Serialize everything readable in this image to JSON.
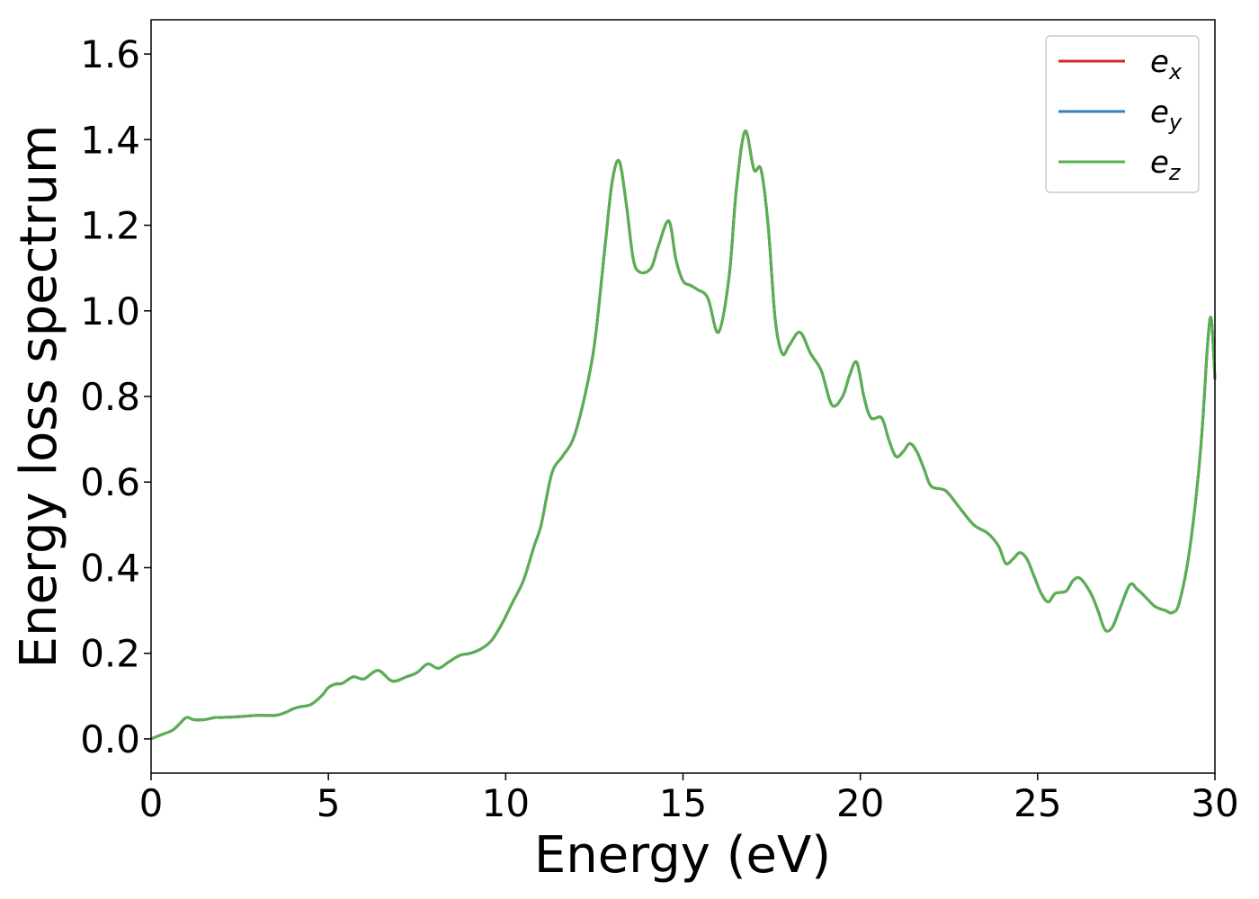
{
  "chart_data": {
    "type": "line",
    "title": "",
    "xlabel": "Energy (eV)",
    "ylabel": "Energy loss spectrum",
    "xlim": [
      0,
      30
    ],
    "ylim": [
      -0.08,
      1.68
    ],
    "xticks": [
      0,
      5,
      10,
      15,
      20,
      25,
      30
    ],
    "yticks": [
      0.0,
      0.2,
      0.4,
      0.6,
      0.8,
      1.0,
      1.2,
      1.4,
      1.6
    ],
    "grid": false,
    "legend_position": "top-right",
    "series": [
      {
        "name": "e_x",
        "name_base": "e",
        "name_sub": "x",
        "color": "#d62728"
      },
      {
        "name": "e_y",
        "name_base": "e",
        "name_sub": "y",
        "color": "#3a7fb5"
      },
      {
        "name": "e_z",
        "name_base": "e",
        "name_sub": "z",
        "color": "#59b04f"
      }
    ],
    "x": [
      0,
      0.3,
      0.6,
      0.8,
      1.0,
      1.2,
      1.5,
      1.8,
      2.0,
      2.5,
      3.0,
      3.5,
      3.8,
      4.0,
      4.2,
      4.5,
      4.8,
      5.0,
      5.2,
      5.4,
      5.7,
      6.0,
      6.4,
      6.8,
      7.2,
      7.5,
      7.8,
      8.1,
      8.4,
      8.7,
      9.0,
      9.3,
      9.6,
      9.9,
      10.2,
      10.5,
      10.8,
      11.0,
      11.3,
      11.6,
      11.9,
      12.2,
      12.5,
      12.8,
      13.0,
      13.2,
      13.4,
      13.6,
      13.8,
      14.1,
      14.3,
      14.6,
      14.8,
      15.0,
      15.2,
      15.4,
      15.7,
      16.0,
      16.3,
      16.5,
      16.75,
      17.0,
      17.2,
      17.4,
      17.6,
      17.8,
      18.0,
      18.3,
      18.6,
      18.9,
      19.2,
      19.5,
      19.7,
      19.9,
      20.1,
      20.3,
      20.6,
      20.8,
      21.0,
      21.2,
      21.4,
      21.6,
      21.8,
      22.0,
      22.4,
      22.8,
      23.2,
      23.6,
      23.9,
      24.1,
      24.3,
      24.5,
      24.7,
      24.9,
      25.1,
      25.3,
      25.5,
      25.8,
      26.0,
      26.2,
      26.5,
      26.7,
      26.9,
      27.1,
      27.3,
      27.6,
      27.8,
      28.0,
      28.3,
      28.6,
      28.8,
      29.0,
      29.3,
      29.6,
      29.8,
      29.9,
      30.0
    ],
    "values": [
      0.0,
      0.01,
      0.02,
      0.035,
      0.05,
      0.045,
      0.045,
      0.05,
      0.05,
      0.052,
      0.055,
      0.055,
      0.062,
      0.07,
      0.075,
      0.08,
      0.1,
      0.12,
      0.128,
      0.13,
      0.145,
      0.14,
      0.16,
      0.135,
      0.145,
      0.155,
      0.175,
      0.165,
      0.18,
      0.195,
      0.2,
      0.21,
      0.23,
      0.27,
      0.32,
      0.37,
      0.45,
      0.5,
      0.62,
      0.66,
      0.7,
      0.79,
      0.92,
      1.15,
      1.3,
      1.35,
      1.25,
      1.12,
      1.09,
      1.1,
      1.15,
      1.21,
      1.12,
      1.07,
      1.06,
      1.05,
      1.03,
      0.95,
      1.08,
      1.28,
      1.42,
      1.33,
      1.33,
      1.2,
      0.98,
      0.9,
      0.92,
      0.95,
      0.9,
      0.86,
      0.78,
      0.8,
      0.85,
      0.88,
      0.8,
      0.75,
      0.75,
      0.7,
      0.66,
      0.67,
      0.69,
      0.67,
      0.63,
      0.59,
      0.58,
      0.54,
      0.5,
      0.48,
      0.45,
      0.41,
      0.42,
      0.435,
      0.42,
      0.38,
      0.34,
      0.32,
      0.34,
      0.345,
      0.37,
      0.375,
      0.34,
      0.3,
      0.255,
      0.26,
      0.3,
      0.36,
      0.35,
      0.335,
      0.31,
      0.3,
      0.295,
      0.32,
      0.45,
      0.68,
      0.93,
      0.98,
      0.84
    ]
  }
}
